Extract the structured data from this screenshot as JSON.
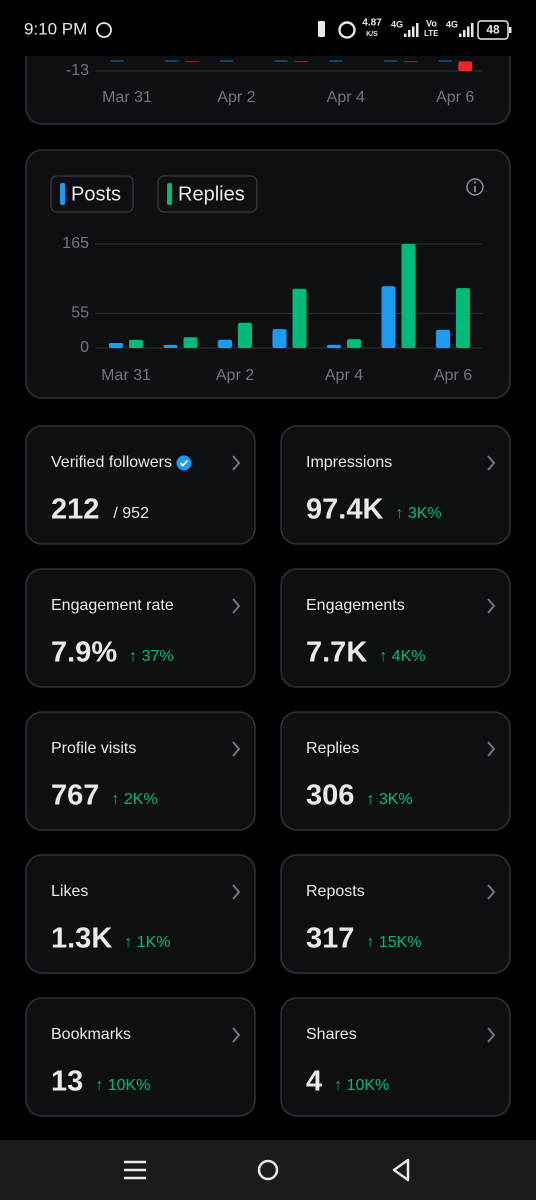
{
  "status": {
    "time": "9:10 PM",
    "speed": "4.87",
    "speed_unit": "K/S",
    "net1": "4G",
    "volte_top": "Vo",
    "volte_bottom": "LTE",
    "net2": "4G",
    "battery": "48"
  },
  "top_chart": {
    "type": "bar",
    "categories": [
      "Mar 31",
      null,
      "Apr 2",
      null,
      "Apr 4",
      null,
      "Apr 6"
    ],
    "series": [
      {
        "color": "#1d9bf0",
        "values": [
          1,
          1,
          1,
          1,
          1,
          1,
          1
        ]
      },
      {
        "color": "#f4212e",
        "values": [
          0,
          -1,
          0,
          -1,
          0,
          -1,
          -13
        ]
      }
    ],
    "ylim": [
      -13,
      30
    ],
    "yticks": [
      -13
    ]
  },
  "main_chart": {
    "type": "bar",
    "categories": [
      "Mar 31",
      null,
      "Apr 2",
      null,
      "Apr 4",
      null,
      "Apr 6"
    ],
    "series": [
      {
        "name": "Posts",
        "color": "#1d9bf0",
        "values": [
          8,
          5,
          13,
          30,
          5,
          98,
          29
        ]
      },
      {
        "name": "Replies",
        "color": "#00ba7c",
        "values": [
          13,
          17,
          40,
          94,
          14,
          165,
          95
        ]
      }
    ],
    "ylim": [
      0,
      165
    ],
    "yticks": [
      0,
      55,
      165
    ]
  },
  "metrics": [
    {
      "label": "Verified followers",
      "value": "212",
      "total": "/ 952"
    },
    {
      "label": "Impressions",
      "value": "97.4K",
      "change": "↑ 3K%"
    },
    {
      "label": "Engagement rate",
      "value": "7.9%",
      "change": "↑ 37%"
    },
    {
      "label": "Engagements",
      "value": "7.7K",
      "change": "↑ 4K%"
    },
    {
      "label": "Profile visits",
      "value": "767",
      "change": "↑ 2K%"
    },
    {
      "label": "Replies",
      "value": "306",
      "change": "↑ 3K%"
    },
    {
      "label": "Likes",
      "value": "1.3K",
      "change": "↑ 1K%"
    },
    {
      "label": "Reposts",
      "value": "317",
      "change": "↑ 15K%"
    },
    {
      "label": "Bookmarks",
      "value": "13",
      "change": "↑ 10K%"
    },
    {
      "label": "Shares",
      "value": "4",
      "change": "↑ 10K%"
    }
  ]
}
